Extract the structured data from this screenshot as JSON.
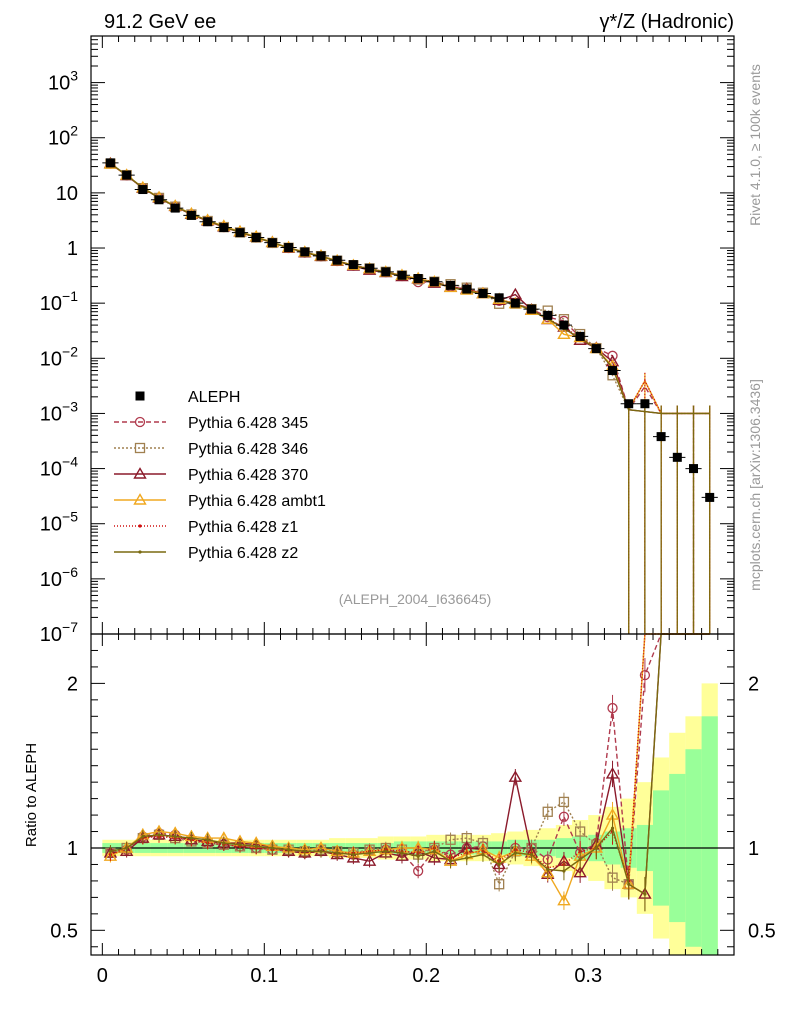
{
  "chart_data": {
    "type": "line",
    "header": {
      "left": "91.2 GeV ee",
      "right": "γ*/Z (Hadronic)"
    },
    "side_labels": {
      "top": "Rivet 4.1.0, ≥ 100k events",
      "bottom": "mcplots.cern.ch [arXiv:1306.3436]"
    },
    "analysis_id": "(ALEPH_2004_I636645)",
    "main": {
      "yscale": "log",
      "ylim": [
        1e-07,
        7000
      ],
      "xlim": [
        -0.007,
        0.39
      ]
    },
    "ratio": {
      "ylabel": "Ratio to ALEPH",
      "ylim": [
        0.35,
        2.3
      ],
      "xlim": [
        -0.007,
        0.39
      ]
    },
    "x_ticks": [
      {
        "v": 0,
        "label": "0"
      },
      {
        "v": 0.1,
        "label": "0.1"
      },
      {
        "v": 0.2,
        "label": "0.2"
      },
      {
        "v": 0.3,
        "label": "0.3"
      }
    ],
    "y_ticks_main": [
      {
        "v": 1000,
        "m": "10",
        "e": "3"
      },
      {
        "v": 100,
        "m": "10",
        "e": "2"
      },
      {
        "v": 10,
        "m": "10",
        "e": ""
      },
      {
        "v": 1,
        "m": "1",
        "e": ""
      },
      {
        "v": 0.1,
        "m": "10",
        "e": "−1"
      },
      {
        "v": 0.01,
        "m": "10",
        "e": "−2"
      },
      {
        "v": 0.001,
        "m": "10",
        "e": "−3"
      },
      {
        "v": 0.0001,
        "m": "10",
        "e": "−4"
      },
      {
        "v": 1e-05,
        "m": "10",
        "e": "−5"
      },
      {
        "v": 1e-06,
        "m": "10",
        "e": "−6"
      },
      {
        "v": 1e-07,
        "m": "10",
        "e": "−7"
      }
    ],
    "y_ticks_ratio": [
      {
        "v": 0.5,
        "label": "0.5"
      },
      {
        "v": 1,
        "label": "1"
      },
      {
        "v": 2,
        "label": "2"
      }
    ],
    "legend": [
      {
        "key": "data",
        "label": "ALEPH"
      },
      {
        "key": "p345",
        "label": "Pythia 6.428 345"
      },
      {
        "key": "p346",
        "label": "Pythia 6.428 346"
      },
      {
        "key": "p370",
        "label": "Pythia 6.428 370"
      },
      {
        "key": "ambt1",
        "label": "Pythia 6.428 ambt1"
      },
      {
        "key": "z1",
        "label": "Pythia 6.428 z1"
      },
      {
        "key": "z2",
        "label": "Pythia 6.428 z2"
      }
    ],
    "colors": {
      "data": "#000000",
      "p345": "#b03a4d",
      "p346": "#a08050",
      "p370": "#8b1a2b",
      "ambt1": "#f0a820",
      "z1": "#d01010",
      "z2": "#7a6a10",
      "band_green": "#99ff99",
      "band_yellow": "#ffff99"
    },
    "x": [
      0.005,
      0.015,
      0.025,
      0.035,
      0.045,
      0.055,
      0.065,
      0.075,
      0.085,
      0.095,
      0.105,
      0.115,
      0.125,
      0.135,
      0.145,
      0.155,
      0.165,
      0.175,
      0.185,
      0.195,
      0.205,
      0.215,
      0.225,
      0.235,
      0.245,
      0.255,
      0.265,
      0.275,
      0.285,
      0.295,
      0.305,
      0.315,
      0.325,
      0.335,
      0.345,
      0.355,
      0.365,
      0.375
    ],
    "data_values": [
      35,
      21,
      11.5,
      7.5,
      5.3,
      3.9,
      3.0,
      2.35,
      1.9,
      1.55,
      1.25,
      1.02,
      0.85,
      0.72,
      0.6,
      0.5,
      0.43,
      0.37,
      0.32,
      0.28,
      0.245,
      0.21,
      0.18,
      0.15,
      0.125,
      0.1,
      0.078,
      0.06,
      0.04,
      0.025,
      0.015,
      0.006,
      0.0015,
      0.0015,
      0.00038,
      0.00016,
      0.0001,
      3e-05
    ],
    "ratio_band_green": [
      0.03,
      0.03,
      0.03,
      0.03,
      0.03,
      0.03,
      0.03,
      0.03,
      0.03,
      0.03,
      0.03,
      0.03,
      0.03,
      0.03,
      0.03,
      0.03,
      0.03,
      0.03,
      0.04,
      0.04,
      0.04,
      0.04,
      0.04,
      0.04,
      0.04,
      0.05,
      0.05,
      0.05,
      0.06,
      0.07,
      0.08,
      0.1,
      0.12,
      0.14,
      0.35,
      0.45,
      0.6,
      0.8
    ],
    "ratio_band_yellow": [
      0.05,
      0.05,
      0.05,
      0.05,
      0.05,
      0.05,
      0.05,
      0.05,
      0.05,
      0.05,
      0.05,
      0.05,
      0.05,
      0.05,
      0.06,
      0.06,
      0.06,
      0.07,
      0.07,
      0.07,
      0.08,
      0.08,
      0.08,
      0.08,
      0.09,
      0.1,
      0.11,
      0.12,
      0.14,
      0.17,
      0.2,
      0.25,
      0.3,
      0.4,
      0.55,
      0.7,
      0.8,
      1.0
    ],
    "series": [
      {
        "key": "p345",
        "marker": "circle",
        "dash": "5,3",
        "ratio": [
          0.97,
          0.99,
          1.07,
          1.09,
          1.08,
          1.05,
          1.03,
          1.02,
          1.01,
          1.0,
          0.99,
          0.98,
          0.97,
          0.98,
          0.97,
          0.96,
          0.98,
          0.99,
          0.97,
          0.86,
          0.99,
          0.96,
          1.0,
          1.01,
          0.88,
          1.0,
          1.0,
          0.93,
          1.19,
          0.97,
          1.03,
          1.85,
          0.78,
          2.05,
          2.6,
          2.6,
          2.6,
          2.6
        ]
      },
      {
        "key": "p346",
        "marker": "square",
        "dash": "2,2",
        "ratio": [
          0.97,
          1.0,
          1.06,
          1.08,
          1.06,
          1.04,
          1.03,
          1.02,
          1.01,
          1.0,
          0.99,
          0.99,
          0.98,
          0.99,
          0.98,
          0.97,
          0.99,
          1.0,
          0.99,
          0.96,
          1.0,
          1.05,
          1.06,
          1.03,
          0.78,
          0.98,
          1.0,
          1.22,
          1.28,
          1.1,
          1.02,
          0.82,
          0.78,
          2.6,
          2.6,
          2.6,
          2.6,
          2.6
        ]
      },
      {
        "key": "p370",
        "marker": "triangle",
        "dash": "",
        "ratio": [
          0.97,
          0.98,
          1.06,
          1.08,
          1.07,
          1.05,
          1.04,
          1.03,
          1.03,
          1.02,
          1.01,
          0.98,
          0.97,
          0.98,
          0.96,
          0.94,
          0.92,
          0.97,
          0.95,
          0.98,
          0.94,
          0.93,
          1.0,
          0.99,
          0.9,
          1.43,
          0.97,
          0.84,
          0.92,
          0.85,
          1.02,
          1.45,
          0.78,
          0.72,
          2.6,
          2.6,
          2.6,
          2.6
        ]
      },
      {
        "key": "ambt1",
        "marker": "triangle",
        "dash": "",
        "ratio": [
          0.95,
          1.0,
          1.08,
          1.1,
          1.09,
          1.07,
          1.06,
          1.06,
          1.04,
          1.03,
          1.01,
          1.0,
          0.99,
          1.0,
          0.98,
          0.97,
          0.98,
          0.99,
          1.0,
          1.0,
          0.99,
          0.92,
          0.96,
          0.99,
          0.94,
          0.98,
          0.95,
          0.85,
          0.68,
          0.95,
          1.0,
          1.2,
          0.78,
          2.6,
          2.6,
          2.6,
          2.6,
          2.6
        ]
      },
      {
        "key": "z1",
        "marker": "dot",
        "dash": "1,2",
        "ratio": [
          0.96,
          1.0,
          1.06,
          1.07,
          1.06,
          1.05,
          1.03,
          1.02,
          1.01,
          1.0,
          0.99,
          0.99,
          0.98,
          0.98,
          0.97,
          0.97,
          0.98,
          0.99,
          0.98,
          0.97,
          1.0,
          0.94,
          0.97,
          0.98,
          0.92,
          0.99,
          0.97,
          0.88,
          0.9,
          0.98,
          1.0,
          1.1,
          0.8,
          2.6,
          2.6,
          2.6,
          2.6,
          2.6
        ]
      },
      {
        "key": "z2",
        "marker": "dot",
        "dash": "",
        "ratio": [
          0.98,
          1.0,
          1.07,
          1.08,
          1.07,
          1.06,
          1.05,
          1.03,
          1.02,
          1.01,
          1.0,
          0.99,
          0.98,
          0.98,
          0.97,
          0.96,
          0.97,
          0.98,
          0.97,
          0.95,
          0.98,
          0.92,
          0.94,
          0.96,
          0.9,
          0.97,
          0.96,
          0.87,
          0.86,
          0.93,
          1.0,
          1.12,
          0.78,
          0.72,
          2.6,
          2.6,
          2.6,
          2.6
        ]
      }
    ]
  }
}
